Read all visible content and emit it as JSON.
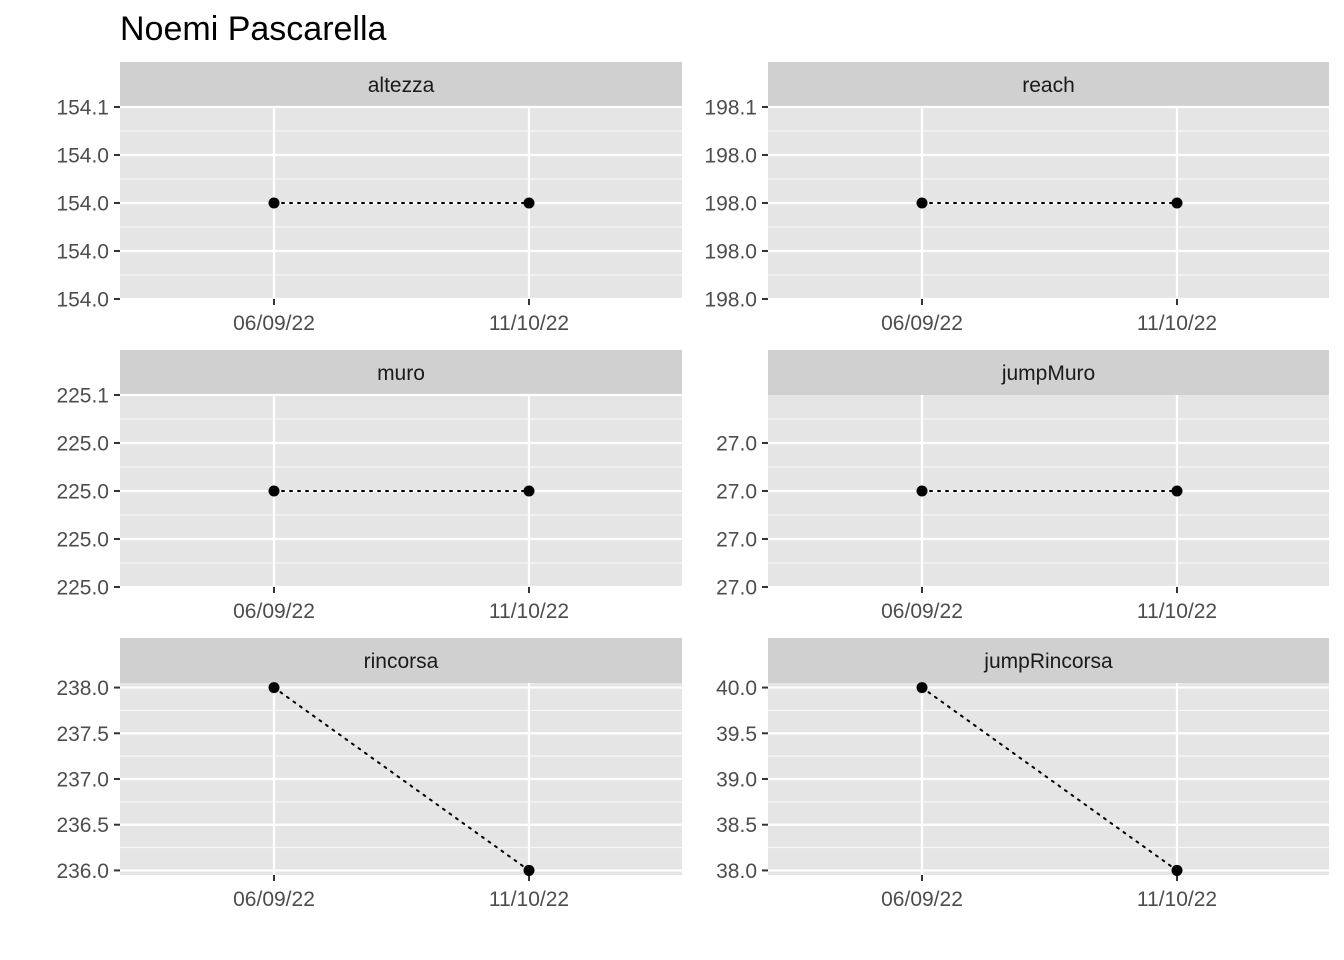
{
  "title": "Noemi Pascarella",
  "colors": {
    "panel_background": "#e5e5e5",
    "strip_background": "#d0d0d0",
    "grid_line": "#ffffff",
    "point": "#000000",
    "tick": "#333333",
    "tick_label": "#4d4d4d"
  },
  "chart_data": [
    {
      "type": "line",
      "panel": "altezza",
      "x": [
        "06/09/22",
        "11/10/22"
      ],
      "values": [
        154.0,
        154.0
      ],
      "yticks": [
        "154.0",
        "154.0",
        "154.0",
        "154.0",
        "154.1"
      ],
      "line_style": "dotted",
      "markers": true,
      "grid": true
    },
    {
      "type": "line",
      "panel": "reach",
      "x": [
        "06/09/22",
        "11/10/22"
      ],
      "values": [
        198.0,
        198.0
      ],
      "yticks": [
        "198.0",
        "198.0",
        "198.0",
        "198.0",
        "198.1"
      ],
      "line_style": "dotted",
      "markers": true,
      "grid": true
    },
    {
      "type": "line",
      "panel": "muro",
      "x": [
        "06/09/22",
        "11/10/22"
      ],
      "values": [
        225.0,
        225.0
      ],
      "yticks": [
        "225.0",
        "225.0",
        "225.0",
        "225.0",
        "225.1"
      ],
      "line_style": "dotted",
      "markers": true,
      "grid": true
    },
    {
      "type": "line",
      "panel": "jumpMuro",
      "x": [
        "06/09/22",
        "11/10/22"
      ],
      "values": [
        27.0,
        27.0
      ],
      "yticks": [
        "27.0",
        "27.0",
        "27.0",
        "27.0"
      ],
      "line_style": "dotted",
      "markers": true,
      "grid": true
    },
    {
      "type": "line",
      "panel": "rincorsa",
      "x": [
        "06/09/22",
        "11/10/22"
      ],
      "values": [
        238.0,
        236.0
      ],
      "yticks": [
        "236.0",
        "236.5",
        "237.0",
        "237.5",
        "238.0"
      ],
      "ylim": [
        235.95,
        238.05
      ],
      "line_style": "dotted",
      "markers": true,
      "grid": true
    },
    {
      "type": "line",
      "panel": "jumpRincorsa",
      "x": [
        "06/09/22",
        "11/10/22"
      ],
      "values": [
        40.0,
        38.0
      ],
      "yticks": [
        "38.0",
        "38.5",
        "39.0",
        "39.5",
        "40.0"
      ],
      "ylim": [
        37.95,
        40.05
      ],
      "line_style": "dotted",
      "markers": true,
      "grid": true
    }
  ]
}
